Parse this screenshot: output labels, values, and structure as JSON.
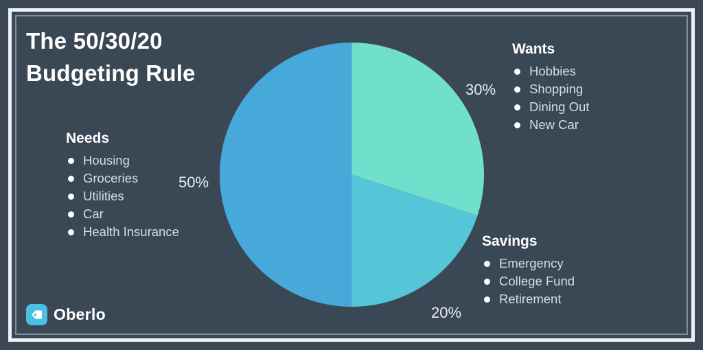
{
  "page": {
    "title_line1": "The 50/30/20",
    "title_line2": "Budgeting Rule",
    "brand": {
      "name": "Oberlo",
      "logo_color": "#4ac0e4"
    }
  },
  "colors": {
    "background": "#3a4755",
    "frame_outer": "#edf0f4",
    "frame_inner": "#becbd4",
    "heading_text": "#ffffff",
    "list_text": "#d6dde4",
    "percent_text": "#e9edf1"
  },
  "chart_data": {
    "type": "pie",
    "title": "The 50/30/20 Budgeting Rule",
    "start_angle_deg": 0,
    "direction": "clockwise",
    "legend_position": "around",
    "slices": [
      {
        "label": "Wants",
        "value": 30,
        "pct_label": "30%",
        "color": "#70e0cc",
        "items": [
          "Hobbies",
          "Shopping",
          "Dining Out",
          "New Car"
        ]
      },
      {
        "label": "Savings",
        "value": 20,
        "pct_label": "20%",
        "color": "#55c6d8",
        "items": [
          "Emergency",
          "College Fund",
          "Retirement"
        ]
      },
      {
        "label": "Needs",
        "value": 50,
        "pct_label": "50%",
        "color": "#47a8da",
        "items": [
          "Housing",
          "Groceries",
          "Utilities",
          "Car",
          "Health Insurance"
        ]
      }
    ]
  }
}
